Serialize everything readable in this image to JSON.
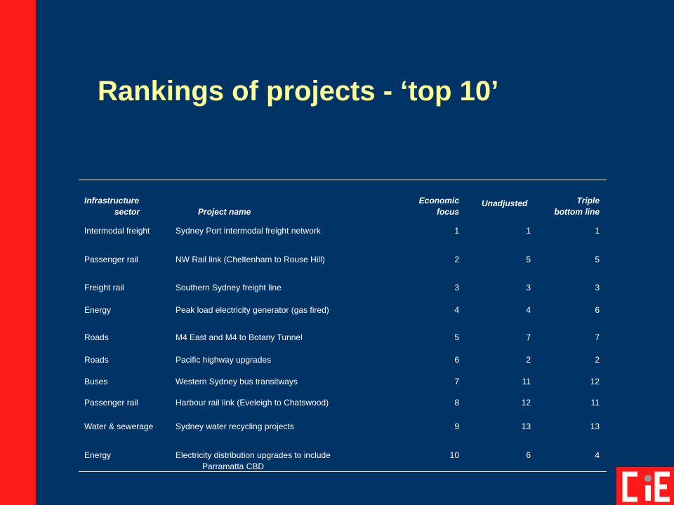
{
  "slide": {
    "title": "Rankings of projects - ‘top 10’"
  },
  "table": {
    "headers": {
      "sector_line1": "Infrastructure",
      "sector_line2": "sector",
      "project": "Project name",
      "econ_line1": "Economic",
      "econ_line2": "focus",
      "unadjusted": "Unadjusted",
      "tbl_line1": "Triple",
      "tbl_line2": "bottom line"
    },
    "rows": [
      {
        "sector": "Intermodal freight",
        "project": "Sydney Port intermodal freight network",
        "project_line2": "",
        "economic": "1",
        "unadjusted": "1",
        "triple": "1"
      },
      {
        "sector": "Passenger rail",
        "project": "NW Rail link (Cheltenham  to Rouse Hill)",
        "project_line2": "",
        "economic": "2",
        "unadjusted": "5",
        "triple": "5"
      },
      {
        "sector": "Freight rail",
        "project": "Southern Sydney freight line",
        "project_line2": "",
        "economic": "3",
        "unadjusted": "3",
        "triple": "3"
      },
      {
        "sector": "Energy",
        "project": "Peak load electricity generator (gas fired)",
        "project_line2": "",
        "economic": "4",
        "unadjusted": "4",
        "triple": "6"
      },
      {
        "sector": "Roads",
        "project": "M4 East and M4 to Botany Tunnel",
        "project_line2": "",
        "economic": "5",
        "unadjusted": "7",
        "triple": "7"
      },
      {
        "sector": "Roads",
        "project": "Pacific highway upgrades",
        "project_line2": "",
        "economic": "6",
        "unadjusted": "2",
        "triple": "2"
      },
      {
        "sector": "Buses",
        "project": "Western Sydney bus transitways",
        "project_line2": "",
        "economic": "7",
        "unadjusted": "11",
        "triple": "12"
      },
      {
        "sector": "Passenger rail",
        "project": "Harbour rail link (Eveleigh to Chatswood)",
        "project_line2": "",
        "economic": "8",
        "unadjusted": "12",
        "triple": "11"
      },
      {
        "sector": "Water & sewerage",
        "project": "Sydney water recycling projects",
        "project_line2": "",
        "economic": "9",
        "unadjusted": "13",
        "triple": "13"
      },
      {
        "sector": "Energy",
        "project": "Electricity distribution upgrades to include",
        "project_line2": "Parramatta CBD",
        "economic": "10",
        "unadjusted": "6",
        "triple": "4"
      }
    ]
  },
  "logo": {
    "icon": "cie-logo-icon",
    "colors": {
      "background": "#ff1a1a",
      "letters": "#ffffff",
      "dot": "#999999"
    }
  },
  "colors": {
    "background": "#003366",
    "accent_bar": "#ff1a1a",
    "title": "#ffff99",
    "text": "#ffffff"
  }
}
